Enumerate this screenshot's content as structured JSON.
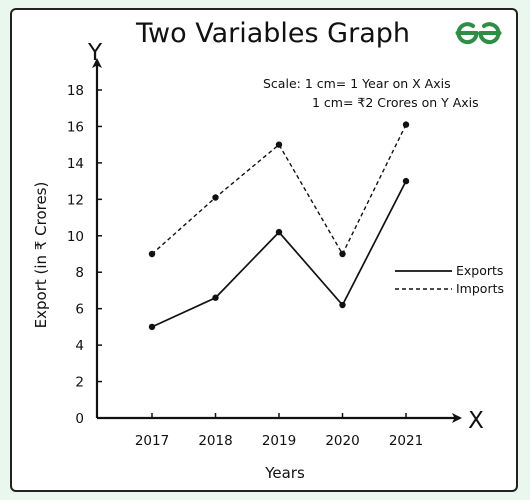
{
  "chart_data": {
    "type": "line",
    "title": "Two Variables Graph",
    "xlabel": "Years",
    "ylabel": "Export (in ₹ Crores)",
    "x_axis_letter": "X",
    "y_axis_letter": "Y",
    "categories": [
      "2017",
      "2018",
      "2019",
      "2020",
      "2021"
    ],
    "ylim": [
      0,
      18
    ],
    "yticks": [
      0,
      2,
      4,
      6,
      8,
      10,
      12,
      14,
      16,
      18
    ],
    "grid": false,
    "legend_position": "right",
    "scale_lines": [
      "Scale: 1 cm= 1 Year on X Axis",
      "1 cm= ₹2 Crores on Y Axis"
    ],
    "series": [
      {
        "name": "Exports",
        "values": [
          5,
          6.6,
          10.2,
          6.2,
          13
        ],
        "style": "solid",
        "color": "#111111"
      },
      {
        "name": "Imports",
        "values": [
          9,
          12.1,
          15,
          9,
          16.1
        ],
        "style": "dashed",
        "color": "#111111"
      }
    ]
  },
  "logo": {
    "text": "GfG",
    "color": "#2f8d46"
  },
  "colors": {
    "background": "#e9f7ee",
    "panel": "#ffffff",
    "ink": "#111111"
  }
}
